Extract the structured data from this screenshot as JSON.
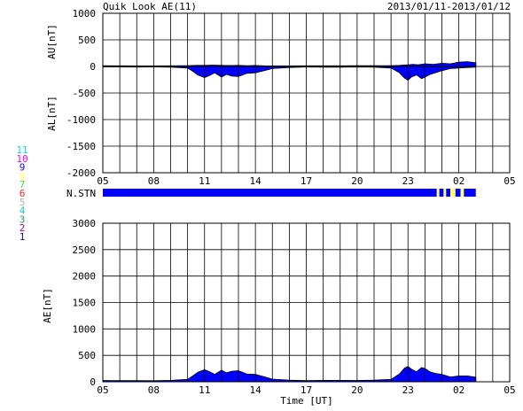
{
  "header": {
    "title": "Quik Look AE(11)",
    "date_range": "2013/01/11-2013/01/12"
  },
  "station_legend": {
    "numbers": [
      "11",
      "10",
      "9",
      "8",
      "7",
      "6",
      "5",
      "4",
      "3",
      "2",
      "1"
    ],
    "colors": [
      "#00e0e0",
      "#ff00ff",
      "#1010e0",
      "#ffff60",
      "#40e040",
      "#ff2020",
      "#b0b0b0",
      "#20c0c0",
      "#20a050",
      "#a000c0",
      "#1010c0"
    ]
  },
  "colors": {
    "fill_blue": "#0000ff",
    "fill_yellow": "#ffff66",
    "line": "#000000"
  },
  "chart_data": [
    {
      "type": "area",
      "name": "au-al-panel",
      "ylabel_top": "AU[nT]",
      "ylabel_bottom": "AL[nT]",
      "xlabel": "",
      "ylim": [
        -2000,
        1000
      ],
      "yticks": [
        1000,
        500,
        0,
        -500,
        -1000,
        -1500,
        -2000
      ],
      "xlim_hours": [
        5,
        29
      ],
      "xticks": [
        "05",
        "08",
        "11",
        "14",
        "17",
        "20",
        "23",
        "02",
        "05"
      ],
      "grid": true,
      "data_end_hour": 27.0,
      "series": [
        {
          "name": "AU",
          "x_hours": [
            5,
            6,
            7,
            8,
            9,
            10,
            10.5,
            11,
            11.5,
            12,
            12.5,
            13,
            13.5,
            14,
            14.5,
            15,
            16,
            17,
            18,
            19,
            20,
            21,
            22,
            22.5,
            23,
            23.3,
            23.6,
            24,
            24.5,
            25,
            25.5,
            26,
            26.5,
            27
          ],
          "values": [
            15,
            12,
            10,
            10,
            12,
            15,
            20,
            20,
            25,
            20,
            18,
            20,
            15,
            18,
            12,
            10,
            10,
            12,
            12,
            12,
            15,
            15,
            15,
            20,
            30,
            40,
            30,
            50,
            40,
            60,
            50,
            80,
            90,
            70
          ]
        },
        {
          "name": "AL",
          "x_hours": [
            5,
            6,
            7,
            8,
            9,
            10,
            10.3,
            10.6,
            11,
            11.3,
            11.6,
            12,
            12.3,
            12.6,
            13,
            13.5,
            14,
            14.5,
            15,
            16,
            17,
            18,
            19,
            20,
            21,
            22,
            22.5,
            22.8,
            23,
            23.2,
            23.5,
            23.8,
            24,
            24.3,
            24.6,
            25,
            25.5,
            26,
            26.5,
            27
          ],
          "values": [
            -10,
            -10,
            -12,
            -10,
            -15,
            -30,
            -90,
            -160,
            -210,
            -170,
            -120,
            -200,
            -150,
            -180,
            -190,
            -130,
            -120,
            -80,
            -40,
            -20,
            -10,
            -15,
            -15,
            -10,
            -15,
            -30,
            -120,
            -220,
            -260,
            -200,
            -160,
            -230,
            -200,
            -150,
            -120,
            -80,
            -40,
            -30,
            -20,
            -15
          ]
        }
      ]
    },
    {
      "type": "bar",
      "name": "station-count-bar",
      "label": "N.STN",
      "xlim_hours": [
        5,
        29
      ],
      "segments": [
        {
          "from": 5,
          "to": 24.7,
          "color": "blue"
        },
        {
          "from": 24.7,
          "to": 24.85,
          "color": "yellow"
        },
        {
          "from": 24.85,
          "to": 25.1,
          "color": "blue"
        },
        {
          "from": 25.1,
          "to": 25.25,
          "color": "yellow"
        },
        {
          "from": 25.25,
          "to": 25.5,
          "color": "blue"
        },
        {
          "from": 25.5,
          "to": 25.8,
          "color": "yellow"
        },
        {
          "from": 25.8,
          "to": 26.1,
          "color": "blue"
        },
        {
          "from": 26.1,
          "to": 26.3,
          "color": "yellow"
        },
        {
          "from": 26.3,
          "to": 27.0,
          "color": "blue"
        }
      ]
    },
    {
      "type": "area",
      "name": "ae-panel",
      "ylabel": "AE[nT]",
      "xlabel": "Time [UT]",
      "ylim": [
        0,
        3000
      ],
      "yticks": [
        3000,
        2500,
        2000,
        1500,
        1000,
        500,
        0
      ],
      "xlim_hours": [
        5,
        29
      ],
      "xticks": [
        "05",
        "08",
        "11",
        "14",
        "17",
        "20",
        "23",
        "02",
        "05"
      ],
      "grid": true,
      "series": [
        {
          "name": "AE",
          "x_hours": [
            5,
            6,
            7,
            8,
            9,
            10,
            10.3,
            10.6,
            11,
            11.3,
            11.6,
            12,
            12.3,
            12.6,
            13,
            13.5,
            14,
            14.5,
            15,
            16,
            17,
            18,
            19,
            20,
            21,
            22,
            22.5,
            22.8,
            23,
            23.2,
            23.5,
            23.8,
            24,
            24.3,
            24.6,
            25,
            25.5,
            26,
            26.5,
            27
          ],
          "values": [
            25,
            22,
            22,
            20,
            27,
            45,
            110,
            180,
            230,
            190,
            140,
            220,
            170,
            200,
            210,
            145,
            140,
            95,
            50,
            30,
            22,
            27,
            27,
            25,
            30,
            45,
            150,
            260,
            290,
            240,
            190,
            270,
            250,
            190,
            160,
            140,
            90,
            110,
            110,
            85
          ]
        }
      ]
    }
  ]
}
